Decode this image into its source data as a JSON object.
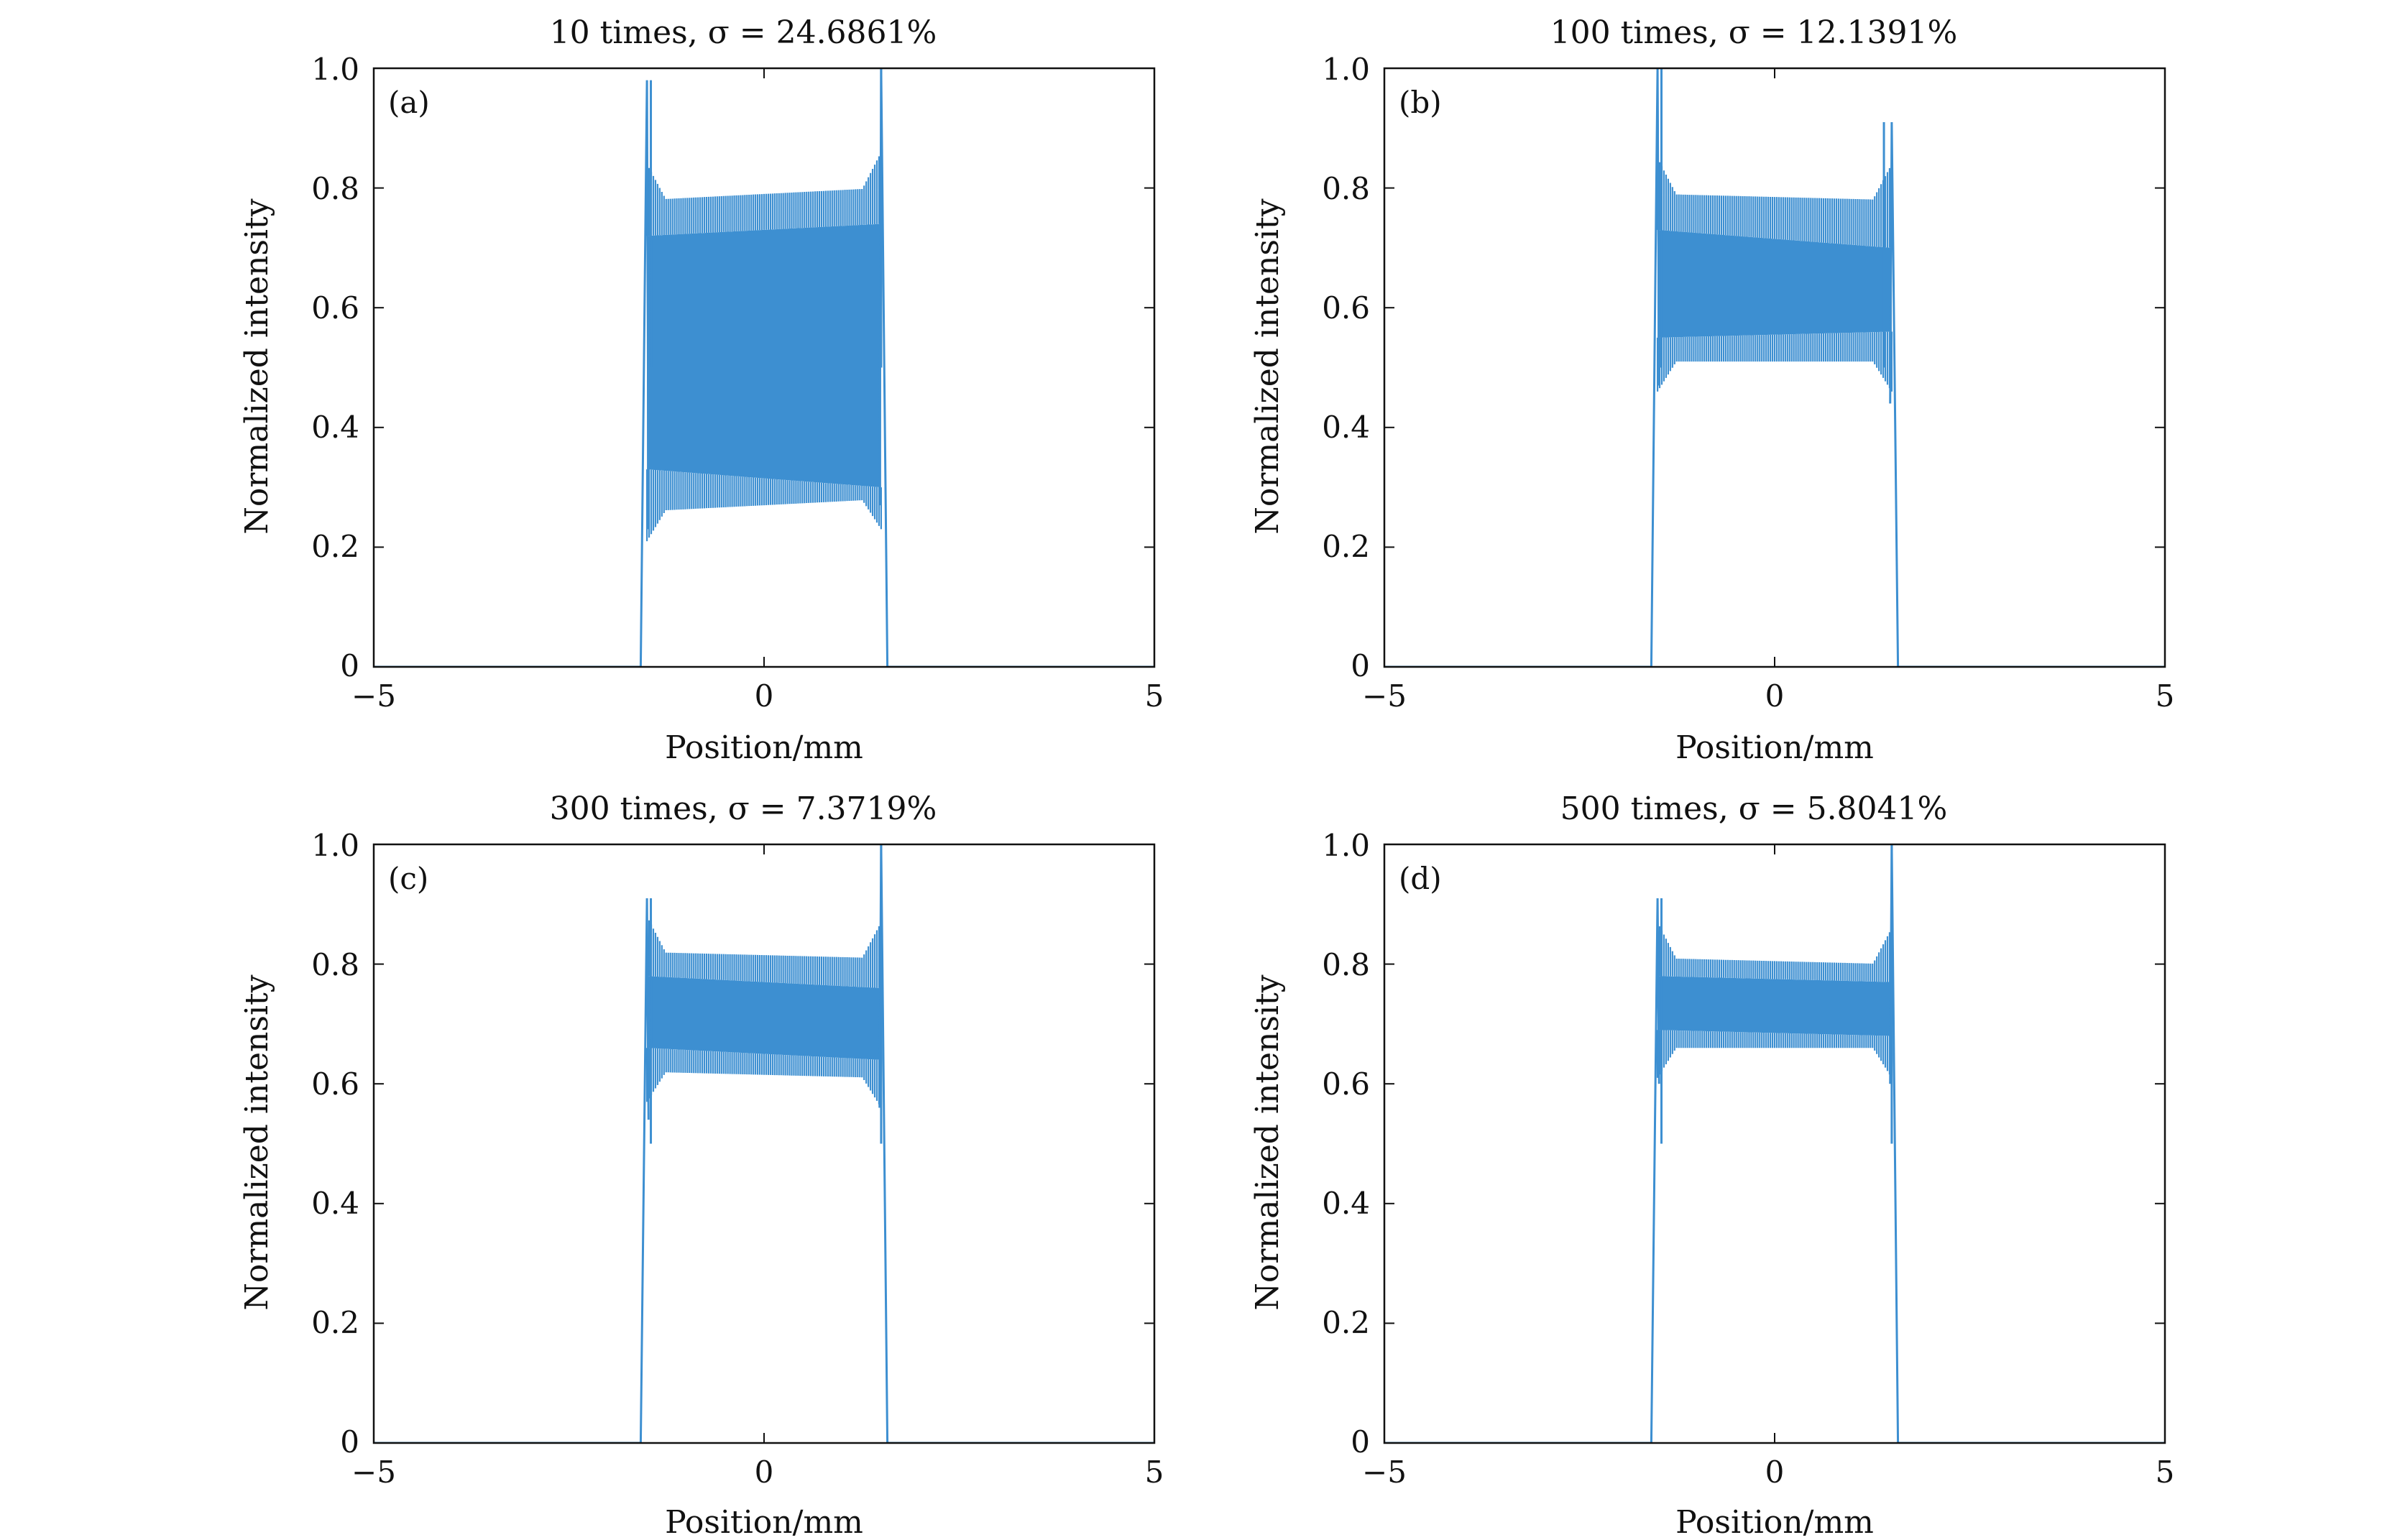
{
  "colors": {
    "signal": "#3d8fd1",
    "axes": "#111111",
    "background": "#ffffff"
  },
  "chart_data": [
    {
      "type": "line",
      "panel": "(a)",
      "title": "10 times, σ = 24.6861%",
      "xlabel": "Position/mm",
      "ylabel": "Normalized intensity",
      "xlim": [
        -5,
        5
      ],
      "ylim": [
        0,
        1.0
      ],
      "xticks": [
        -5,
        0,
        5
      ],
      "xtick_labels": [
        "−5",
        "0",
        "5"
      ],
      "yticks": [
        0,
        0.2,
        0.4,
        0.6,
        0.8,
        1.0
      ],
      "ytick_labels": [
        "0",
        "0.2",
        "0.4",
        "0.6",
        "0.8",
        "1.0"
      ],
      "grid": false,
      "series": [
        {
          "name": "intensity",
          "flat_top_x": [
            -1.5,
            1.5
          ],
          "band_upper": [
            0.72,
            0.74
          ],
          "band_lower": [
            0.33,
            0.3
          ],
          "outer_upper": [
            0.78,
            0.8
          ],
          "outer_lower": [
            0.26,
            0.28
          ],
          "peaks": [
            {
              "x": -1.45,
              "y": 0.98
            },
            {
              "x": 1.5,
              "y": 1.0
            }
          ],
          "edge_troughs": [
            {
              "x": -1.42,
              "y": 0.23
            },
            {
              "x": 1.45,
              "y": 0.27
            }
          ]
        }
      ]
    },
    {
      "type": "line",
      "panel": "(b)",
      "title": "100 times, σ = 12.1391%",
      "xlabel": "Position/mm",
      "ylabel": "Normalized intensity",
      "xlim": [
        -5,
        5
      ],
      "ylim": [
        0,
        1.0
      ],
      "xticks": [
        -5,
        0,
        5
      ],
      "xtick_labels": [
        "−5",
        "0",
        "5"
      ],
      "yticks": [
        0,
        0.2,
        0.4,
        0.6,
        0.8,
        1.0
      ],
      "ytick_labels": [
        "0",
        "0.2",
        "0.4",
        "0.6",
        "0.8",
        "1.0"
      ],
      "grid": false,
      "series": [
        {
          "name": "intensity",
          "flat_top_x": [
            -1.5,
            1.5
          ],
          "band_upper": [
            0.73,
            0.7
          ],
          "band_lower": [
            0.55,
            0.56
          ],
          "outer_upper": [
            0.79,
            0.78
          ],
          "outer_lower": [
            0.51,
            0.51
          ],
          "peaks": [
            {
              "x": -1.45,
              "y": 1.0
            },
            {
              "x": 1.4,
              "y": 0.91
            }
          ],
          "edge_troughs": [
            {
              "x": -1.42,
              "y": 0.47
            },
            {
              "x": 1.42,
              "y": 0.44
            }
          ]
        }
      ]
    },
    {
      "type": "line",
      "panel": "(c)",
      "title": "300 times, σ = 7.3719%",
      "xlabel": "Position/mm",
      "ylabel": "Normalized intensity",
      "xlim": [
        -5,
        5
      ],
      "ylim": [
        0,
        1.0
      ],
      "xticks": [
        -5,
        0,
        5
      ],
      "xtick_labels": [
        "−5",
        "0",
        "5"
      ],
      "yticks": [
        0,
        0.2,
        0.4,
        0.6,
        0.8,
        1.0
      ],
      "ytick_labels": [
        "0",
        "0.2",
        "0.4",
        "0.6",
        "0.8",
        "1.0"
      ],
      "grid": false,
      "series": [
        {
          "name": "intensity",
          "flat_top_x": [
            -1.5,
            1.5
          ],
          "band_upper": [
            0.78,
            0.76
          ],
          "band_lower": [
            0.66,
            0.64
          ],
          "outer_upper": [
            0.82,
            0.81
          ],
          "outer_lower": [
            0.62,
            0.61
          ],
          "peaks": [
            {
              "x": -1.45,
              "y": 0.91
            },
            {
              "x": 1.5,
              "y": 1.0
            }
          ],
          "edge_troughs": [
            {
              "x": -1.42,
              "y": 0.54
            },
            {
              "x": 1.45,
              "y": 0.56
            }
          ]
        }
      ]
    },
    {
      "type": "line",
      "panel": "(d)",
      "title": "500 times, σ = 5.8041%",
      "xlabel": "Position/mm",
      "ylabel": "Normalized intensity",
      "xlim": [
        -5,
        5
      ],
      "ylim": [
        0,
        1.0
      ],
      "xticks": [
        -5,
        0,
        5
      ],
      "xtick_labels": [
        "−5",
        "0",
        "5"
      ],
      "yticks": [
        0,
        0.2,
        0.4,
        0.6,
        0.8,
        1.0
      ],
      "ytick_labels": [
        "0",
        "0.2",
        "0.4",
        "0.6",
        "0.8",
        "1.0"
      ],
      "grid": false,
      "series": [
        {
          "name": "intensity",
          "flat_top_x": [
            -1.5,
            1.5
          ],
          "band_upper": [
            0.78,
            0.77
          ],
          "band_lower": [
            0.69,
            0.68
          ],
          "outer_upper": [
            0.81,
            0.8
          ],
          "outer_lower": [
            0.66,
            0.66
          ],
          "peaks": [
            {
              "x": -1.45,
              "y": 0.91
            },
            {
              "x": 1.5,
              "y": 1.0
            }
          ],
          "edge_troughs": [
            {
              "x": -1.42,
              "y": 0.6
            },
            {
              "x": 1.45,
              "y": 0.6
            }
          ]
        }
      ]
    }
  ]
}
